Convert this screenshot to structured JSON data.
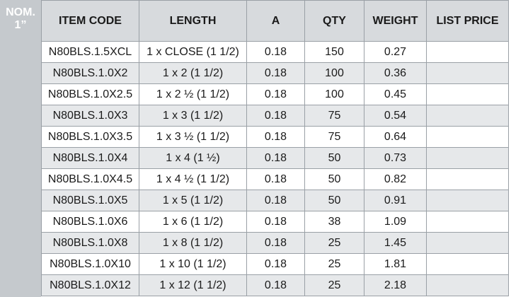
{
  "nominal": {
    "line1": "NOM.",
    "line2": "1”"
  },
  "columns": [
    "ITEM CODE",
    "LENGTH",
    "A",
    "QTY",
    "WEIGHT",
    "LIST PRICE"
  ],
  "rows": [
    {
      "item_code": "N80BLS.1.5XCL",
      "length": "1 x CLOSE (1 1/2)",
      "a": "0.18",
      "qty": "150",
      "weight": "0.27",
      "list_price": ""
    },
    {
      "item_code": "N80BLS.1.0X2",
      "length": "1 x 2 (1 1/2)",
      "a": "0.18",
      "qty": "100",
      "weight": "0.36",
      "list_price": ""
    },
    {
      "item_code": "N80BLS.1.0X2.5",
      "length": "1 x 2 ½ (1 1/2)",
      "a": "0.18",
      "qty": "100",
      "weight": "0.45",
      "list_price": ""
    },
    {
      "item_code": "N80BLS.1.0X3",
      "length": "1 x 3 (1 1/2)",
      "a": "0.18",
      "qty": "75",
      "weight": "0.54",
      "list_price": ""
    },
    {
      "item_code": "N80BLS.1.0X3.5",
      "length": "1 x 3 ½ (1 1/2)",
      "a": "0.18",
      "qty": "75",
      "weight": "0.64",
      "list_price": ""
    },
    {
      "item_code": "N80BLS.1.0X4",
      "length": "1 x 4 (1 ½)",
      "a": "0.18",
      "qty": "50",
      "weight": "0.73",
      "list_price": ""
    },
    {
      "item_code": "N80BLS.1.0X4.5",
      "length": "1 x 4 ½ (1 1/2)",
      "a": "0.18",
      "qty": "50",
      "weight": "0.82",
      "list_price": ""
    },
    {
      "item_code": "N80BLS.1.0X5",
      "length": "1 x 5 (1 1/2)",
      "a": "0.18",
      "qty": "50",
      "weight": "0.91",
      "list_price": ""
    },
    {
      "item_code": "N80BLS.1.0X6",
      "length": "1 x 6 (1 1/2)",
      "a": "0.18",
      "qty": "38",
      "weight": "1.09",
      "list_price": ""
    },
    {
      "item_code": "N80BLS.1.0X8",
      "length": "1 x 8 (1 1/2)",
      "a": "0.18",
      "qty": "25",
      "weight": "1.45",
      "list_price": ""
    },
    {
      "item_code": "N80BLS.1.0X10",
      "length": "1 x 10 (1 1/2)",
      "a": "0.18",
      "qty": "25",
      "weight": "1.81",
      "list_price": ""
    },
    {
      "item_code": "N80BLS.1.0X12",
      "length": "1 x 12 (1 1/2)",
      "a": "0.18",
      "qty": "25",
      "weight": "2.18",
      "list_price": ""
    }
  ]
}
